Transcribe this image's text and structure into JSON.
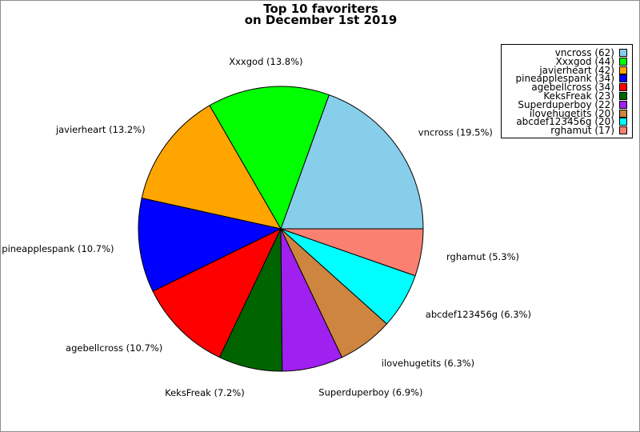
{
  "chart_data": {
    "type": "pie",
    "title": "Top 10 favoriters",
    "subtitle": "on December 1st 2019",
    "start_angle_deg": 0,
    "direction": "counterclockwise",
    "slices": [
      {
        "name": "vncross",
        "value": 62,
        "label": "vncross (19.5%)",
        "legend": "vncross (62)",
        "color": "#87ceeb"
      },
      {
        "name": "Xxxgod",
        "value": 44,
        "label": "Xxxgod (13.8%)",
        "legend": "Xxxgod (44)",
        "color": "#00ff00"
      },
      {
        "name": "javierheart",
        "value": 42,
        "label": "javierheart (13.2%)",
        "legend": "javierheart (42)",
        "color": "#ffa500"
      },
      {
        "name": "pineapplespank",
        "value": 34,
        "label": "pineapplespank (10.7%)",
        "legend": "pineapplespank (34)",
        "color": "#0000ff"
      },
      {
        "name": "agebellcross",
        "value": 34,
        "label": "agebellcross (10.7%)",
        "legend": "agebellcross (34)",
        "color": "#ff0000"
      },
      {
        "name": "KeksFreak",
        "value": 23,
        "label": "KeksFreak (7.2%)",
        "legend": "KeksFreak (23)",
        "color": "#006400"
      },
      {
        "name": "Superduperboy",
        "value": 22,
        "label": "Superduperboy (6.9%)",
        "legend": "Superduperboy (22)",
        "color": "#a020f0"
      },
      {
        "name": "ilovehugetits",
        "value": 20,
        "label": "ilovehugetits (6.3%)",
        "legend": "ilovehugetits (20)",
        "color": "#cd853f"
      },
      {
        "name": "abcdef123456g",
        "value": 20,
        "label": "abcdef123456g (6.3%)",
        "legend": "abcdef123456g (20)",
        "color": "#00ffff"
      },
      {
        "name": "rghamut",
        "value": 17,
        "label": "rghamut (5.3%)",
        "legend": "rghamut (17)",
        "color": "#fa8072"
      }
    ],
    "legend_position": "top-right"
  }
}
